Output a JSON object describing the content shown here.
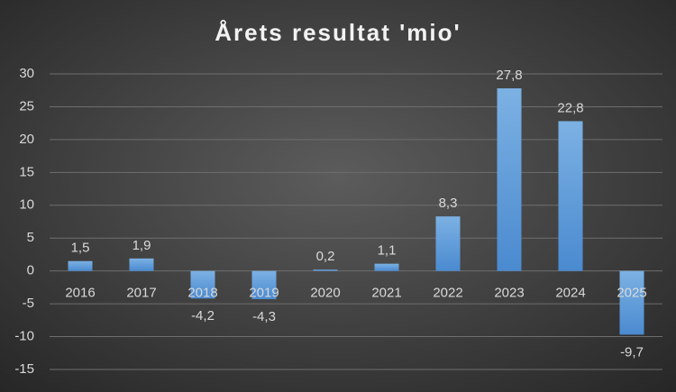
{
  "chart_data": {
    "type": "bar",
    "title": "Årets resultat 'mio'",
    "categories": [
      "2016",
      "2017",
      "2018",
      "2019",
      "2020",
      "2021",
      "2022",
      "2023",
      "2024",
      "2025"
    ],
    "values": [
      1.5,
      1.9,
      -4.2,
      -4.3,
      0.2,
      1.1,
      8.3,
      27.8,
      22.8,
      -9.7
    ],
    "value_labels": [
      "1,5",
      "1,9",
      "-4,2",
      "-4,3",
      "0,2",
      "1,1",
      "8,3",
      "27,8",
      "22,8",
      "-9,7"
    ],
    "color": "#5b9bd5",
    "ylim": [
      -15,
      30
    ],
    "yticks": [
      -15,
      -10,
      -5,
      0,
      5,
      10,
      15,
      20,
      25,
      30
    ],
    "grid": true
  }
}
